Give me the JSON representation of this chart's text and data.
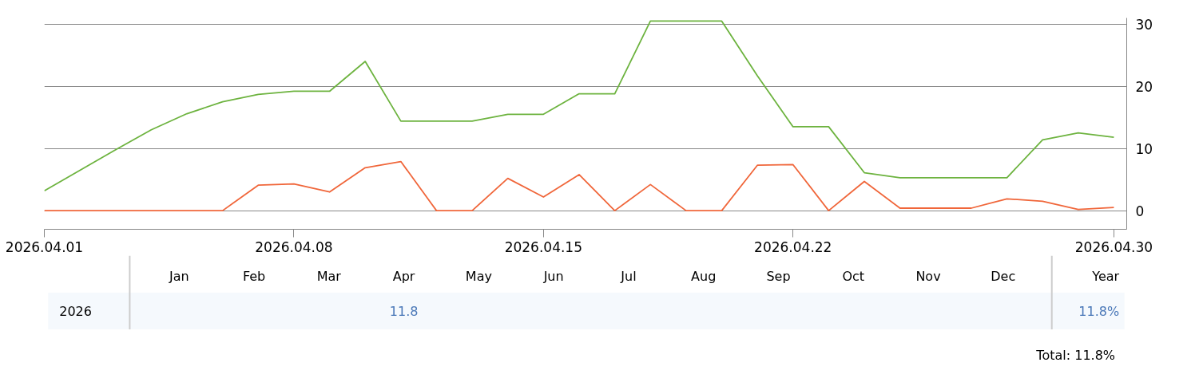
{
  "chart_data": [
    {
      "type": "line",
      "categories": [
        "2026.04.01",
        null,
        null,
        null,
        null,
        null,
        null,
        "2026.04.08",
        null,
        null,
        null,
        null,
        null,
        null,
        "2026.04.15",
        null,
        null,
        null,
        null,
        null,
        null,
        "2026.04.22",
        null,
        null,
        null,
        null,
        null,
        null,
        null,
        null,
        "2026.04.30"
      ],
      "series": [
        {
          "color": "#6db33f",
          "values": [
            3.2,
            6.5,
            9.8,
            13.0,
            15.6,
            17.5,
            18.7,
            19.2,
            19.2,
            24.0,
            14.4,
            14.4,
            14.4,
            15.5,
            15.5,
            18.8,
            18.8,
            30.5,
            30.5,
            30.5,
            21.7,
            13.5,
            13.5,
            6.1,
            5.3,
            5.3,
            5.3,
            5.3,
            11.4,
            12.5,
            11.8
          ]
        },
        {
          "color": "#f0663a",
          "values": [
            0,
            0,
            0,
            0,
            0,
            0,
            4.1,
            4.3,
            3.0,
            6.9,
            7.9,
            0,
            0,
            5.2,
            2.2,
            5.8,
            0,
            4.2,
            0,
            0,
            7.3,
            7.4,
            0,
            4.7,
            0.4,
            0.4,
            0.4,
            1.9,
            1.5,
            0.2,
            0.5
          ]
        }
      ],
      "ylim": [
        -3,
        31
      ],
      "yticks": [
        0,
        10,
        20,
        30
      ],
      "grid": "y",
      "line_style": "solid"
    },
    {
      "type": "other",
      "categories": [
        "Jan",
        "Feb",
        "Mar",
        "Apr",
        "May",
        "Jun",
        "Jul",
        "Aug",
        "Sep",
        "Oct",
        "Nov",
        "Dec",
        "Year"
      ],
      "y_categories": [
        "2026"
      ],
      "cell_labels": [
        [
          null,
          null,
          null,
          "11.8",
          null,
          null,
          null,
          null,
          null,
          null,
          null,
          null,
          "11.8%"
        ]
      ],
      "color": "#f5f9fd",
      "annotations": [
        "Total:  11.8%"
      ]
    }
  ]
}
